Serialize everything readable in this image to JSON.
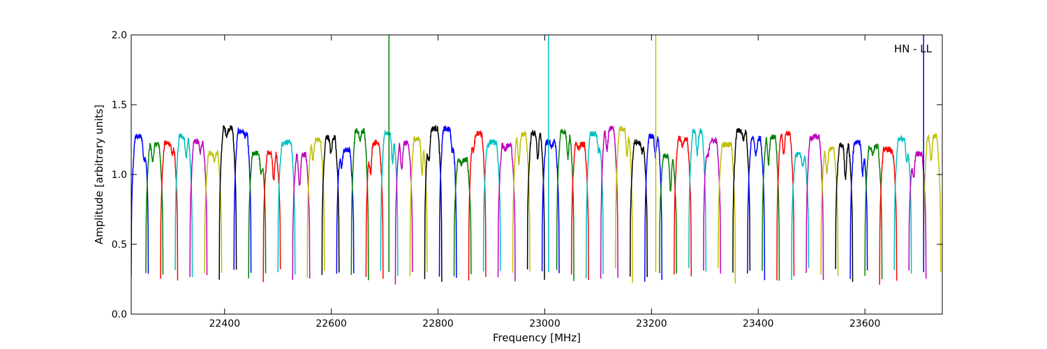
{
  "chart_data": {
    "type": "line",
    "xlabel": "Frequency [MHz]",
    "ylabel": "Amplitude [arbitrary units]",
    "annotation": "HN - LL",
    "annotation_position": "top-right",
    "xlim": [
      22225,
      23745
    ],
    "ylim": [
      0.0,
      2.0
    ],
    "x_ticks": [
      22400,
      22600,
      22800,
      23000,
      23200,
      23400,
      23600
    ],
    "x_tick_labels": [
      "22400",
      "22600",
      "22800",
      "23000",
      "23200",
      "23400",
      "23600"
    ],
    "y_ticks": [
      0.0,
      0.5,
      1.0,
      1.5,
      2.0
    ],
    "y_tick_labels": [
      "0.0",
      "0.5",
      "1.0",
      "1.5",
      "2.0"
    ],
    "grid": false,
    "legend": "none",
    "color_cycle": [
      "#0000ff",
      "#008000",
      "#ff0000",
      "#00bfbf",
      "#bf00bf",
      "#bfbf00",
      "#000000"
    ],
    "band_count": 55,
    "band_start_mhz": 22225,
    "band_spacing_mhz": 27.5,
    "band_width_mhz": 32,
    "band_amplitude_range": [
      1.1,
      1.36
    ],
    "band_edge_minimum": [
      0.23,
      0.32
    ],
    "spikes": [
      {
        "x": 22708,
        "color": "#008000",
        "y_top": 2.0
      },
      {
        "x": 23007,
        "color": "#00bfbf",
        "y_top": 2.0
      },
      {
        "x": 23208,
        "color": "#bfbf00",
        "y_top": 2.0
      },
      {
        "x": 23710,
        "color": "#0000ff",
        "y_top": 2.0
      }
    ]
  }
}
